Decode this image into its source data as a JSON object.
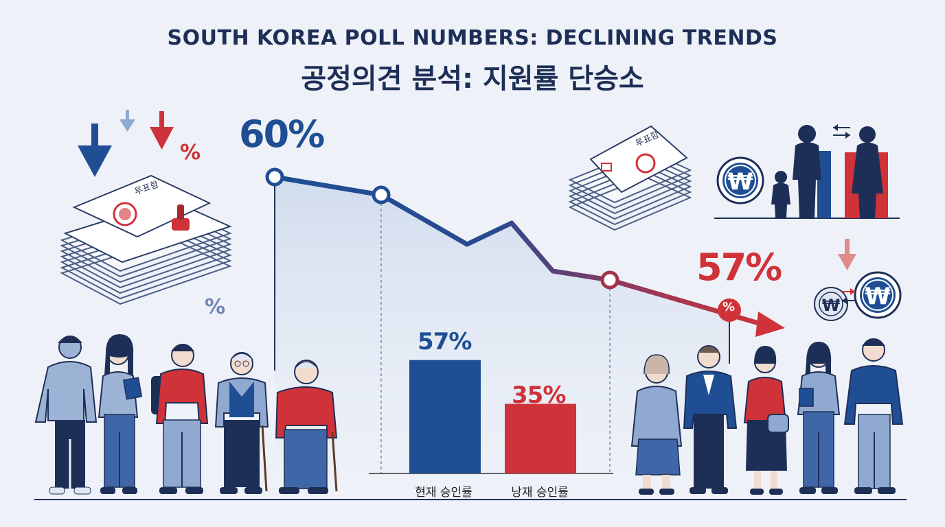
{
  "title_en": "SOUTH KOREA POLL NUMBERS: DECLINING TRENDS",
  "title_ko": "공정의견 분석: 지원률 단승소",
  "colors": {
    "blue": "#1f4e94",
    "red": "#cf3238",
    "navy": "#1e2f57",
    "light_blue": "#8fa9d1"
  },
  "decor": {
    "percent_sign": "%",
    "ballot_label": "투표함",
    "won_symbol": "₩"
  },
  "chart_data": [
    {
      "type": "line",
      "title": "",
      "data_labels": [
        "60%",
        "57%"
      ],
      "marker_badge": "%",
      "series": [
        {
          "values": [
            60,
            57
          ]
        }
      ]
    },
    {
      "type": "bar",
      "title": "",
      "categories": [
        "현재 승인률",
        "낭재 승인률"
      ],
      "values": [
        57,
        35
      ],
      "value_labels": [
        "57%",
        "35%"
      ],
      "colors": [
        "#1f4e94",
        "#cf3238"
      ],
      "ylim": [
        0,
        100
      ]
    }
  ]
}
